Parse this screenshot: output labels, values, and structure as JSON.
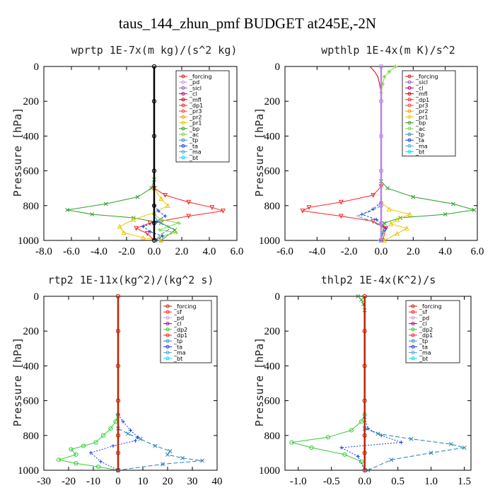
{
  "title": "taus_144_zhun_pmf  BUDGET at245E,-2N",
  "chart_data": [
    {
      "type": "line",
      "title": "wprtp  1E-7x(m kg)/(s^2 kg)",
      "ylabel": "Pressure [hPa]",
      "ylim": [
        1000,
        0
      ],
      "xlim": [
        -8,
        6
      ],
      "xticks": [
        -8,
        -6,
        -4,
        -2,
        0,
        2,
        4,
        6
      ],
      "xtick_labels": [
        "-8.0",
        "-6.0",
        "-4.0",
        "-2.0",
        "0.0",
        "2.0",
        "4.0",
        "6.0"
      ],
      "yticks": [
        0,
        200,
        400,
        600,
        800,
        1000
      ],
      "legend": "top-right",
      "legend_entries": [
        "_forcing",
        "_pd",
        "_sicl",
        "_cl",
        "_mfl",
        "_dp1",
        "_pr3",
        "_pr2",
        "_pr1",
        "_bp",
        "_ac",
        "_tp",
        "_ta",
        "_ma",
        "_bt"
      ],
      "series": [
        {
          "name": "_forcing",
          "color": "#000000",
          "marker": "o",
          "dash": "",
          "x": [
            0,
            0,
            0,
            0,
            0,
            0,
            0
          ],
          "y": [
            0,
            200,
            400,
            600,
            800,
            900,
            1000
          ]
        },
        {
          "name": "_bp",
          "color": "#2ca02c",
          "marker": "x",
          "dash": "",
          "x": [
            0,
            -0.2,
            -1.2,
            -3.5,
            -6.3,
            -4.5,
            -1.5,
            0.5,
            1.5,
            0.5
          ],
          "y": [
            650,
            700,
            750,
            790,
            825,
            850,
            870,
            900,
            940,
            1000
          ]
        },
        {
          "name": "_pr1",
          "color": "#e8c800",
          "marker": "^",
          "dash": "",
          "x": [
            0,
            0.5,
            1.0,
            0,
            -1.5,
            -2.5,
            -2.2,
            -0.8,
            0.5
          ],
          "y": [
            700,
            760,
            800,
            840,
            880,
            920,
            955,
            985,
            1000
          ]
        },
        {
          "name": "_dp1",
          "color": "#ff2020",
          "marker": "v",
          "dash": "",
          "x": [
            0,
            0.8,
            2.5,
            4.2,
            5.0,
            2.5,
            -0.3,
            -1.3,
            -0.5,
            0
          ],
          "y": [
            700,
            740,
            780,
            810,
            830,
            860,
            900,
            930,
            960,
            1000
          ]
        },
        {
          "name": "_ac",
          "color": "#7fd63f",
          "marker": "*",
          "dash": "",
          "x": [
            0,
            0.5,
            1.8,
            1.0,
            0.4,
            1.6,
            0.6,
            0
          ],
          "y": [
            850,
            880,
            900,
            920,
            940,
            955,
            975,
            1000
          ]
        },
        {
          "name": "_ta",
          "color": "#1a3ee0",
          "marker": "+",
          "dash": "3,2",
          "x": [
            0,
            0.3,
            0.8,
            0.2,
            -0.8,
            -0.3,
            0.6,
            0.2
          ],
          "y": [
            800,
            830,
            860,
            890,
            920,
            950,
            975,
            1000
          ]
        },
        {
          "name": "_tp",
          "color": "#3a8fc0",
          "marker": "",
          "dash": "6,2",
          "x": [
            0,
            0.3,
            1.2,
            0.5,
            0.1
          ],
          "y": [
            860,
            890,
            930,
            965,
            1000
          ]
        }
      ]
    },
    {
      "type": "line",
      "title": "wpthlp  1E-4x(m K)/s^2",
      "ylabel": "Pressure [hPa]",
      "ylim": [
        1000,
        0
      ],
      "xlim": [
        -6,
        6
      ],
      "xticks": [
        -6,
        -4,
        -2,
        0,
        2,
        4,
        6
      ],
      "xtick_labels": [
        "-6.0",
        "-4.0",
        "-2.0",
        "0.0",
        "2.0",
        "4.0",
        "6.0"
      ],
      "yticks": [
        0,
        200,
        400,
        600,
        800,
        1000
      ],
      "legend": "top-right",
      "legend_entries": [
        "_forcing",
        "_sicl",
        "_cl",
        "_mfl",
        "_dp1",
        "_pr3",
        "_pr2",
        "_pr1",
        "_bp",
        "_ac",
        "_tp",
        "_ta",
        "_ma",
        "_bt"
      ],
      "series": [
        {
          "name": "_forcing",
          "color": "#c080e0",
          "marker": "o",
          "dash": "",
          "x": [
            0,
            0,
            0,
            0,
            0,
            0,
            0
          ],
          "y": [
            0,
            200,
            400,
            600,
            800,
            900,
            1000
          ]
        },
        {
          "name": "_bp",
          "color": "#2ca02c",
          "marker": "x",
          "dash": "",
          "x": [
            0,
            0.4,
            2.0,
            4.5,
            5.8,
            4.0,
            1.2,
            0.2,
            0
          ],
          "y": [
            660,
            700,
            750,
            790,
            825,
            850,
            870,
            900,
            1000
          ]
        },
        {
          "name": "_dp1",
          "color": "#ff2020",
          "marker": "v",
          "dash": "",
          "x": [
            0,
            -0.5,
            -2.5,
            -4.5,
            -4.9,
            -2.5,
            -0.5,
            0.3,
            0.1
          ],
          "y": [
            690,
            740,
            780,
            810,
            830,
            860,
            890,
            930,
            1000
          ]
        },
        {
          "name": "_pr1",
          "color": "#e8c800",
          "marker": "^",
          "dash": "",
          "x": [
            0,
            0.5,
            1.8,
            1.0,
            0.6,
            1.6,
            1.0,
            0.2
          ],
          "y": [
            780,
            820,
            850,
            880,
            905,
            930,
            960,
            1000
          ]
        },
        {
          "name": "_ta",
          "color": "#1a3ee0",
          "marker": "+",
          "dash": "3,2",
          "x": [
            0,
            -0.5,
            -1.2,
            -0.3,
            0.3,
            -0.1
          ],
          "y": [
            780,
            820,
            850,
            880,
            930,
            1000
          ]
        },
        {
          "name": "_tp",
          "color": "#3a8fc0",
          "marker": "",
          "dash": "6,2",
          "x": [
            0,
            -0.6,
            -1.5,
            -0.6,
            0.2,
            0
          ],
          "y": [
            800,
            830,
            860,
            890,
            930,
            1000
          ]
        },
        {
          "name": "_ac",
          "color": "#7fd63f",
          "marker": "*",
          "dash": "",
          "x": [
            0.9,
            0.5,
            0.2,
            0.1,
            0
          ],
          "y": [
            0,
            30,
            60,
            100,
            150
          ]
        },
        {
          "name": "_mfl",
          "color": "#c00000",
          "marker": "",
          "dash": "",
          "x": [
            -0.7,
            -0.4,
            -0.2,
            -0.1,
            0
          ],
          "y": [
            0,
            30,
            60,
            100,
            150
          ]
        }
      ]
    },
    {
      "type": "line",
      "title": "rtp2  1E-11x(kg^2)/(kg^2 s)",
      "ylabel": "Pressure [hPa]",
      "ylim": [
        1000,
        0
      ],
      "xlim": [
        -30,
        40
      ],
      "xticks": [
        -30,
        -20,
        -10,
        0,
        10,
        20,
        30,
        40
      ],
      "xtick_labels": [
        "-30",
        "-20",
        "-10",
        "0",
        "10",
        "20",
        "30",
        "40"
      ],
      "yticks": [
        0,
        200,
        400,
        600,
        800,
        1000
      ],
      "legend": "top-right",
      "legend_entries": [
        "_forcing",
        "_sf",
        "_pd",
        "_cl",
        "_dp2",
        "_dp1",
        "_tp",
        "_ta",
        "_ma",
        "_bt"
      ],
      "series": [
        {
          "name": "_forcing",
          "color": "#c02000",
          "marker": "o",
          "dash": "",
          "x": [
            0,
            0,
            0,
            0,
            0,
            0,
            0
          ],
          "y": [
            0,
            200,
            400,
            600,
            800,
            900,
            1000
          ]
        },
        {
          "name": "_dp1",
          "color": "#32cd32",
          "marker": "o",
          "dash": "",
          "x": [
            0,
            -1,
            -3,
            -6,
            -9,
            -14,
            -19,
            -17,
            -24,
            -17,
            -8,
            0
          ],
          "y": [
            680,
            720,
            760,
            800,
            840,
            860,
            880,
            910,
            940,
            960,
            980,
            1000
          ]
        },
        {
          "name": "_ta",
          "color": "#1a3ee0",
          "marker": "+",
          "dash": "2,2",
          "x": [
            0,
            2,
            5,
            8,
            7,
            -2,
            -11,
            -7,
            0
          ],
          "y": [
            680,
            720,
            770,
            810,
            830,
            860,
            900,
            950,
            1000
          ]
        },
        {
          "name": "_tp",
          "color": "#2080b0",
          "marker": "x",
          "dash": "6,3",
          "x": [
            0,
            4,
            9,
            15,
            21,
            20,
            26,
            34,
            18,
            0
          ],
          "y": [
            760,
            790,
            820,
            860,
            890,
            910,
            930,
            945,
            965,
            1000
          ]
        }
      ]
    },
    {
      "type": "line",
      "title": "thlp2  1E-4x(K^2)/s",
      "ylabel": "Pressure [hPa]",
      "ylim": [
        1000,
        0
      ],
      "xlim": [
        -1.2,
        1.6
      ],
      "xticks": [
        -1.0,
        -0.5,
        0.0,
        0.5,
        1.0,
        1.5
      ],
      "xtick_labels": [
        "-1.0",
        "-0.5",
        "0.0",
        "0.5",
        "1.0",
        "1.5"
      ],
      "yticks": [
        0,
        200,
        400,
        600,
        800,
        1000
      ],
      "legend": "top-right",
      "legend_entries": [
        "_forcing",
        "_sf",
        "_pd",
        "_cl",
        "_dp2",
        "_dp1",
        "_tp",
        "_ta",
        "_ma",
        "_bt"
      ],
      "series": [
        {
          "name": "_forcing",
          "color": "#c02000",
          "marker": "o",
          "dash": "",
          "x": [
            0,
            0,
            0,
            0,
            0,
            0,
            0
          ],
          "y": [
            0,
            200,
            400,
            600,
            800,
            900,
            1000
          ]
        },
        {
          "name": "_dp1",
          "color": "#32cd32",
          "marker": "o",
          "dash": "",
          "x": [
            0,
            -0.05,
            -0.2,
            -0.55,
            -1.1,
            -0.8,
            -0.3,
            -0.05,
            0
          ],
          "y": [
            680,
            720,
            770,
            810,
            840,
            870,
            910,
            950,
            1000
          ]
        },
        {
          "name": "_ta",
          "color": "#1a3ee0",
          "marker": "+",
          "dash": "2,2",
          "x": [
            0,
            0.05,
            0.25,
            0.55,
            -0.35,
            -0.1,
            0
          ],
          "y": [
            700,
            760,
            800,
            840,
            870,
            920,
            1000
          ]
        },
        {
          "name": "_tp",
          "color": "#2080b0",
          "marker": "x",
          "dash": "6,3",
          "x": [
            0,
            0.2,
            0.7,
            1.3,
            1.5,
            1.0,
            0.4,
            0.05
          ],
          "y": [
            760,
            790,
            820,
            850,
            870,
            900,
            940,
            1000
          ]
        },
        {
          "name": "_dp2",
          "color": "#2ca02c",
          "marker": "x",
          "dash": "",
          "x": [
            -0.1,
            -0.05,
            -0.02,
            0
          ],
          "y": [
            0,
            20,
            45,
            80
          ]
        }
      ]
    }
  ]
}
